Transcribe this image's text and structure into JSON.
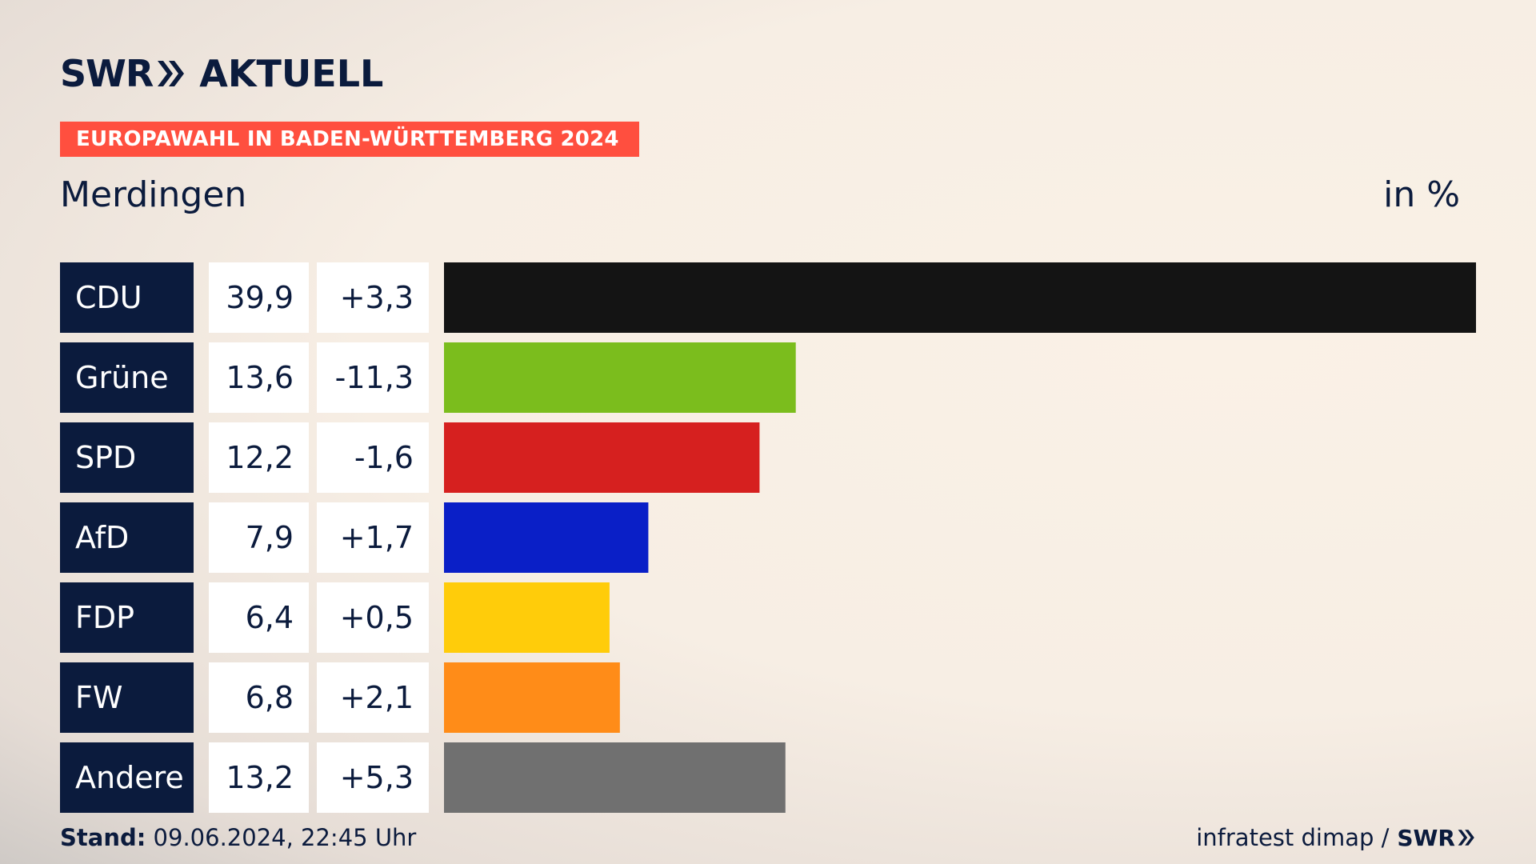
{
  "header": {
    "logo_brand": "SWR",
    "logo_product": "AKTUELL",
    "banner": "EUROPAWAHL IN BADEN-WÜRTTEMBERG 2024",
    "location": "Merdingen",
    "unit": "in %"
  },
  "footer": {
    "stand_label": "Stand:",
    "stand_value": "09.06.2024, 22:45 Uhr",
    "source": "infratest dimap /",
    "brand": "SWR"
  },
  "colors": {
    "label_bg": "#0b1b3d",
    "banner_bg": "#ff4f3f"
  },
  "chart_data": {
    "type": "bar",
    "orientation": "horizontal",
    "categories": [
      "CDU",
      "Grüne",
      "SPD",
      "AfD",
      "FDP",
      "FW",
      "Andere"
    ],
    "values": [
      39.9,
      13.6,
      12.2,
      7.9,
      6.4,
      6.8,
      13.2
    ],
    "value_labels": [
      "39,9",
      "13,6",
      "12,2",
      "7,9",
      "6,4",
      "6,8",
      "13,2"
    ],
    "changes": [
      "+3,3",
      "-11,3",
      "-1,6",
      "+1,7",
      "+0,5",
      "+2,1",
      "+5,3"
    ],
    "bar_colors": [
      "#141414",
      "#7bbd1d",
      "#d6201f",
      "#0a1fc7",
      "#ffcc0a",
      "#ff8c18",
      "#707070"
    ],
    "xlim": [
      0,
      39.9
    ],
    "grid": false
  }
}
